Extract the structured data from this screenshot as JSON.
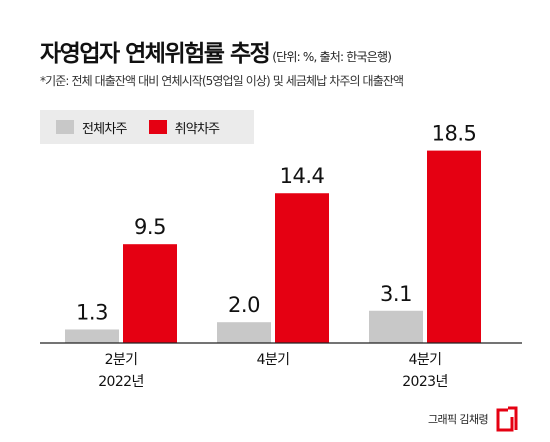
{
  "header": {
    "title": "자영업자 연체위험률 추정",
    "unit_note": "(단위: %, 출처: 한국은행)",
    "subtitle": "*기준: 전체 대출잔액 대비 연체시작(5영업일 이상) 및 세금체납 차주의 대출잔액"
  },
  "chart_data": {
    "type": "bar",
    "categories": [
      [
        "2분기",
        "2022년"
      ],
      [
        "4분기"
      ],
      [
        "4분기",
        "2023년"
      ]
    ],
    "series": [
      {
        "name": "전체차주",
        "color": "#c8c8c8",
        "values": [
          1.3,
          2.0,
          3.1
        ],
        "labels": [
          "1.3",
          "2.0",
          "3.1"
        ]
      },
      {
        "name": "취약차주",
        "color": "#e50012",
        "values": [
          9.5,
          14.4,
          18.5
        ],
        "labels": [
          "9.5",
          "14.4",
          "18.5"
        ]
      }
    ],
    "ylim": [
      0,
      20
    ],
    "legend_position": "top-left",
    "grid": false
  },
  "footer": {
    "credit": "그래픽 김채령",
    "logo_icon": "asiae-logo-icon"
  }
}
